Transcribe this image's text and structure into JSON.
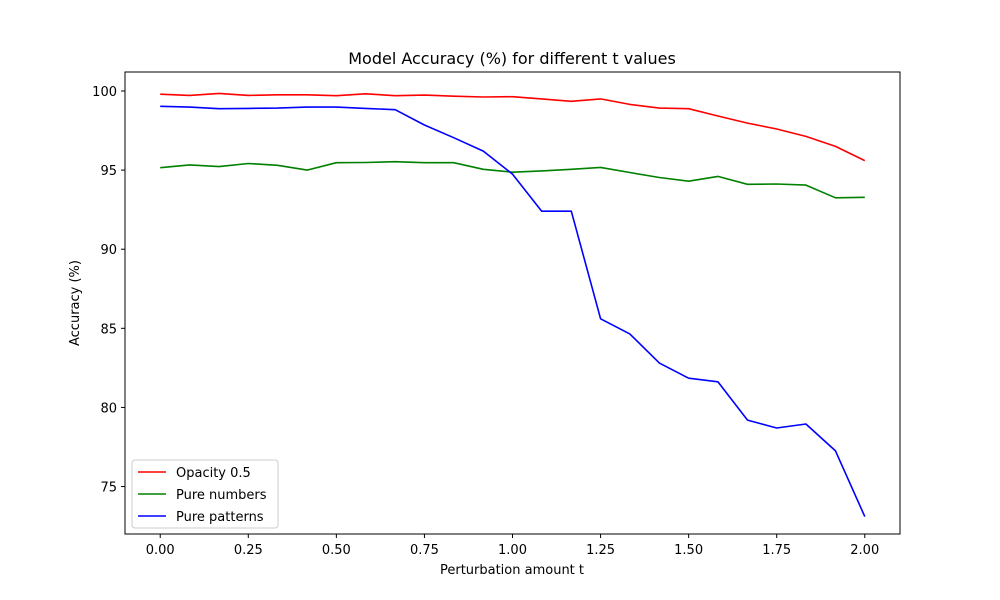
{
  "chart_data": {
    "type": "line",
    "title": "Model Accuracy (%) for different t values",
    "xlabel": "Perturbation amount t",
    "ylabel": "Accuracy (%)",
    "xlim": [
      -0.1,
      2.1
    ],
    "ylim": [
      72.0,
      101.2
    ],
    "xticks": [
      0.0,
      0.25,
      0.5,
      0.75,
      1.0,
      1.25,
      1.5,
      1.75,
      2.0
    ],
    "xtick_labels": [
      "0.00",
      "0.25",
      "0.50",
      "0.75",
      "1.00",
      "1.25",
      "1.50",
      "1.75",
      "2.00"
    ],
    "yticks": [
      75,
      80,
      85,
      90,
      95,
      100
    ],
    "ytick_labels": [
      "75",
      "80",
      "85",
      "90",
      "95",
      "100"
    ],
    "grid": false,
    "legend_position": "lower-left",
    "x": [
      0.0,
      0.083,
      0.167,
      0.25,
      0.333,
      0.417,
      0.5,
      0.583,
      0.667,
      0.75,
      0.833,
      0.917,
      1.0,
      1.083,
      1.167,
      1.25,
      1.333,
      1.417,
      1.5,
      1.583,
      1.667,
      1.75,
      1.833,
      1.917,
      2.0
    ],
    "series": [
      {
        "name": "Opacity 0.5",
        "color": "#ff0000",
        "values": [
          99.8,
          99.72,
          99.85,
          99.72,
          99.76,
          99.76,
          99.7,
          99.82,
          99.7,
          99.74,
          99.67,
          99.62,
          99.64,
          99.5,
          99.35,
          99.5,
          99.15,
          98.92,
          98.88,
          98.42,
          97.97,
          97.6,
          97.13,
          96.5,
          95.6
        ]
      },
      {
        "name": "Pure numbers",
        "color": "#008000",
        "values": [
          95.15,
          95.33,
          95.22,
          95.42,
          95.3,
          95.0,
          95.47,
          95.48,
          95.53,
          95.47,
          95.47,
          95.05,
          94.87,
          94.95,
          95.05,
          95.17,
          94.85,
          94.53,
          94.3,
          94.6,
          94.1,
          94.12,
          94.05,
          93.25,
          93.28
        ]
      },
      {
        "name": "Pure patterns",
        "color": "#0000ff",
        "values": [
          99.03,
          98.98,
          98.88,
          98.9,
          98.92,
          98.98,
          98.98,
          98.9,
          98.82,
          97.85,
          97.05,
          96.2,
          94.75,
          92.4,
          92.4,
          85.6,
          84.65,
          82.8,
          81.85,
          81.62,
          79.2,
          78.7,
          78.95,
          77.25,
          73.1
        ]
      }
    ]
  }
}
